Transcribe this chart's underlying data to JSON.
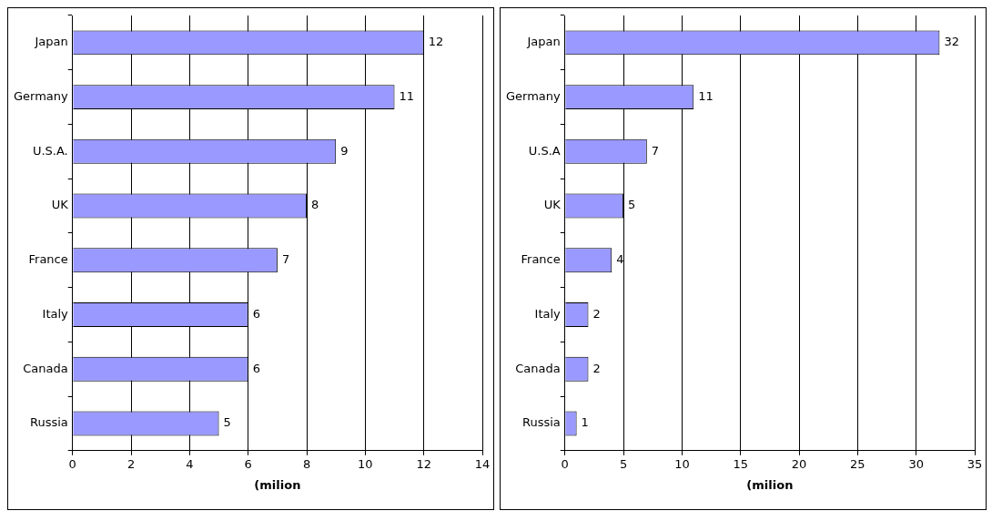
{
  "chart_data": [
    {
      "type": "bar",
      "orientation": "horizontal",
      "categories": [
        "Japan",
        "Germany",
        "U.S.A.",
        "UK",
        "France",
        "Italy",
        "Canada",
        "Russia"
      ],
      "series": [
        {
          "color": "#9999ff",
          "values": [
            12,
            11,
            9,
            8,
            7,
            6,
            6,
            5
          ]
        }
      ],
      "xlabel": "(milion",
      "xlim": [
        0,
        14
      ],
      "xticks": [
        0,
        2,
        4,
        6,
        8,
        10,
        12,
        14
      ],
      "grid": "x",
      "data_labels": true,
      "legend": false
    },
    {
      "type": "bar",
      "orientation": "horizontal",
      "categories": [
        "Japan",
        "Germany",
        "U.S.A",
        "UK",
        "France",
        "Italy",
        "Canada",
        "Russia"
      ],
      "series": [
        {
          "color": "#9999ff",
          "values": [
            32,
            11,
            7,
            5,
            4,
            2,
            2,
            1
          ]
        }
      ],
      "xlabel": "(milion",
      "xlim": [
        0,
        35
      ],
      "xticks": [
        0,
        5,
        10,
        15,
        20,
        25,
        30,
        35
      ],
      "grid": "x",
      "data_labels": true,
      "legend": false
    }
  ]
}
